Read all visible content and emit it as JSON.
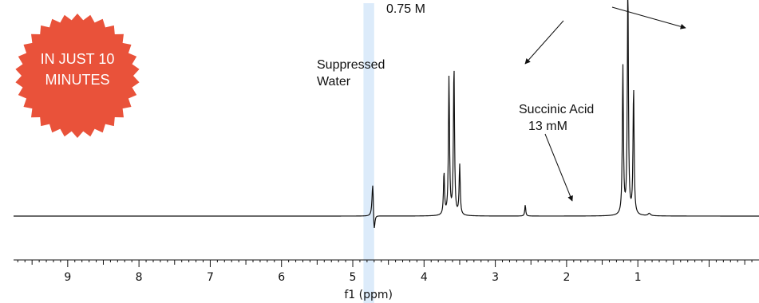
{
  "chart_data": {
    "type": "line",
    "xlabel": "f1 (ppm)",
    "xlim": [
      9.95,
      -0.7
    ],
    "x_reversed": true,
    "xticks": [
      9,
      8,
      7,
      6,
      5,
      4,
      3,
      2,
      1
    ],
    "highlight_band": {
      "x_range": [
        4.85,
        4.7
      ],
      "color": "#dcebfa"
    },
    "line_color": "#111111",
    "peaks": [
      {
        "x": 4.72,
        "height": 45,
        "width": 0.012
      },
      {
        "x": 4.7,
        "height": -26,
        "width": 0.012
      },
      {
        "x": 3.72,
        "height": 53,
        "width": 0.009
      },
      {
        "x": 3.65,
        "height": 173,
        "width": 0.009
      },
      {
        "x": 3.58,
        "height": 188,
        "width": 0.009
      },
      {
        "x": 3.5,
        "height": 63,
        "width": 0.009
      },
      {
        "x": 2.58,
        "height": 14,
        "width": 0.008
      },
      {
        "x": 1.21,
        "height": 186,
        "width": 0.009
      },
      {
        "x": 1.14,
        "height": 290,
        "width": 0.009
      },
      {
        "x": 1.06,
        "height": 160,
        "width": 0.009
      },
      {
        "x": 0.84,
        "height": 3,
        "width": 0.02
      }
    ],
    "annotations": [
      {
        "id": "water",
        "lines": [
          "Suppressed",
          "Water"
        ]
      },
      {
        "id": "succinic",
        "lines": [
          "Succinic Acid",
          "13 mM"
        ]
      },
      {
        "id": "ethanol",
        "lines": [
          "0.75 M"
        ]
      }
    ]
  },
  "badge": {
    "lines": [
      "IN JUST 10",
      "MINUTES"
    ],
    "color": "#e9523a"
  }
}
